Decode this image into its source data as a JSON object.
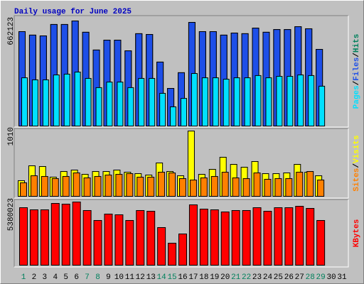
{
  "chart_data": [
    {
      "type": "bar",
      "title": "Daily usage for June 2025",
      "legend_separator": "/",
      "ylim": [
        0,
        662123
      ],
      "yticks": [
        662123
      ],
      "series": [
        {
          "name": "Hits",
          "color": "#00805C",
          "values": [
            595000,
            573000,
            568000,
            640000,
            640000,
            662123,
            591000,
            479000,
            541000,
            541000,
            474000,
            582000,
            577000,
            403000,
            237000,
            336000,
            653000,
            595000,
            595000,
            573000,
            586000,
            582000,
            617000,
            591000,
            608000,
            608000,
            626000,
            613000,
            483000,
            null,
            null
          ]
        },
        {
          "name": "Files",
          "color": "#1E4FE8",
          "values": [
            595000,
            573000,
            568000,
            640000,
            640000,
            662123,
            591000,
            479000,
            541000,
            541000,
            474000,
            582000,
            577000,
            403000,
            237000,
            336000,
            653000,
            595000,
            595000,
            573000,
            586000,
            582000,
            617000,
            591000,
            608000,
            608000,
            626000,
            613000,
            483000,
            null,
            null
          ]
        },
        {
          "name": "Pages",
          "color": "#00E0FF",
          "values": [
            304000,
            291000,
            291000,
            322000,
            327000,
            340000,
            300000,
            242000,
            277000,
            277000,
            242000,
            300000,
            300000,
            206000,
            121000,
            174000,
            331000,
            304000,
            304000,
            295000,
            304000,
            304000,
            318000,
            304000,
            313000,
            313000,
            322000,
            318000,
            251000,
            null,
            null
          ]
        }
      ]
    },
    {
      "type": "bar",
      "legend_separator": "/",
      "ylim": [
        0,
        1010
      ],
      "yticks": [
        1010
      ],
      "series": [
        {
          "name": "Visits",
          "color": "#FFFF00",
          "values": [
            242,
            472,
            461,
            297,
            384,
            406,
            340,
            384,
            384,
            406,
            373,
            351,
            329,
            516,
            384,
            318,
            1010,
            340,
            417,
            604,
            494,
            450,
            538,
            351,
            351,
            362,
            494,
            373,
            318,
            null,
            null
          ]
        },
        {
          "name": "Sites",
          "color": "#FF8000",
          "values": [
            209,
            318,
            307,
            274,
            307,
            362,
            285,
            307,
            329,
            340,
            351,
            296,
            296,
            373,
            362,
            274,
            252,
            285,
            307,
            373,
            285,
            274,
            362,
            263,
            274,
            274,
            373,
            384,
            252,
            null,
            null
          ]
        }
      ]
    },
    {
      "type": "bar",
      "ylim": [
        0,
        5380023
      ],
      "yticks": [
        5380023
      ],
      "categories": [
        "1",
        "2",
        "3",
        "4",
        "5",
        "6",
        "7",
        "8",
        "9",
        "10",
        "11",
        "12",
        "13",
        "14",
        "15",
        "16",
        "17",
        "18",
        "19",
        "20",
        "21",
        "22",
        "23",
        "24",
        "25",
        "26",
        "27",
        "28",
        "29",
        "30",
        "31"
      ],
      "category_colors": [
        "#00805C",
        "#000000",
        "#000000",
        "#000000",
        "#000000",
        "#000000",
        "#00805C",
        "#00805C",
        "#000000",
        "#000000",
        "#000000",
        "#000000",
        "#000000",
        "#00805C",
        "#00805C",
        "#000000",
        "#000000",
        "#000000",
        "#000000",
        "#000000",
        "#00805C",
        "#00805C",
        "#000000",
        "#000000",
        "#000000",
        "#000000",
        "#000000",
        "#00805C",
        "#00805C",
        "#000000",
        "#000000"
      ],
      "series": [
        {
          "name": "KBytes",
          "color": "#FF0000",
          "values": [
            4896000,
            4715000,
            4715000,
            5259000,
            5199000,
            5380023,
            4655000,
            3808000,
            4352000,
            4292000,
            3808000,
            4655000,
            4594000,
            3204000,
            1874000,
            2660000,
            5138000,
            4776000,
            4715000,
            4534000,
            4655000,
            4655000,
            4896000,
            4594000,
            4896000,
            4896000,
            5017000,
            4836000,
            3808000,
            null,
            null
          ]
        }
      ]
    }
  ]
}
